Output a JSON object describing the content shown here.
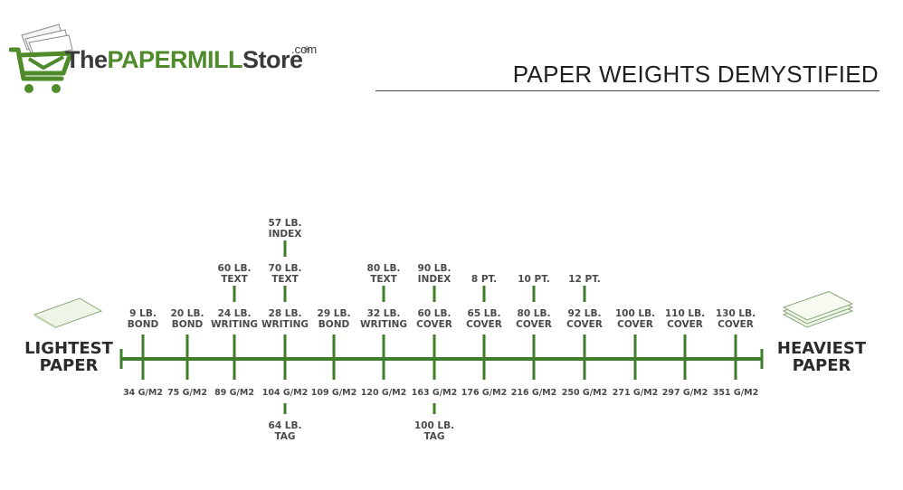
{
  "logo": {
    "the": "The",
    "paper": "PAPER",
    "mill": "MILL",
    "store": "Store",
    "com": ".com",
    "registered": "®"
  },
  "title": "PAPER WEIGHTS DEMYSTIFIED",
  "scale": {
    "left_label": "LIGHTEST\nPAPER",
    "right_label": "HEAVIEST\nPAPER"
  },
  "colors": {
    "accent": "#3f7d2b",
    "text": "#4a4a4a"
  },
  "ticks": [
    {
      "gsm": "34 G/M2",
      "above": [
        "9 LB.\nBOND"
      ],
      "below": []
    },
    {
      "gsm": "75 G/M2",
      "above": [
        "20 LB.\nBOND"
      ],
      "below": []
    },
    {
      "gsm": "89 G/M2",
      "above": [
        "24 LB.\nWRITING",
        "60 LB.\nTEXT"
      ],
      "below": []
    },
    {
      "gsm": "104 G/M2",
      "above": [
        "28 LB.\nWRITING",
        "70 LB.\nTEXT",
        "57 LB.\nINDEX"
      ],
      "below": [
        "64 LB.\nTAG"
      ]
    },
    {
      "gsm": "109 G/M2",
      "above": [
        "29 LB.\nBOND"
      ],
      "below": []
    },
    {
      "gsm": "120 G/M2",
      "above": [
        "32 LB.\nWRITING",
        "80 LB.\nTEXT"
      ],
      "below": []
    },
    {
      "gsm": "163 G/M2",
      "above": [
        "60 LB.\nCOVER",
        "90 LB.\nINDEX"
      ],
      "below": [
        "100 LB.\nTAG"
      ]
    },
    {
      "gsm": "176 G/M2",
      "above": [
        "65 LB.\nCOVER",
        "8 PT."
      ],
      "below": []
    },
    {
      "gsm": "216 G/M2",
      "above": [
        "80 LB.\nCOVER",
        "10 PT."
      ],
      "below": []
    },
    {
      "gsm": "250 G/M2",
      "above": [
        "92 LB.\nCOVER",
        "12 PT."
      ],
      "below": []
    },
    {
      "gsm": "271 G/M2",
      "above": [
        "100 LB.\nCOVER"
      ],
      "below": []
    },
    {
      "gsm": "297 G/M2",
      "above": [
        "110 LB.\nCOVER"
      ],
      "below": []
    },
    {
      "gsm": "351 G/M2",
      "above": [
        "130 LB.\nCOVER"
      ],
      "below": []
    }
  ]
}
